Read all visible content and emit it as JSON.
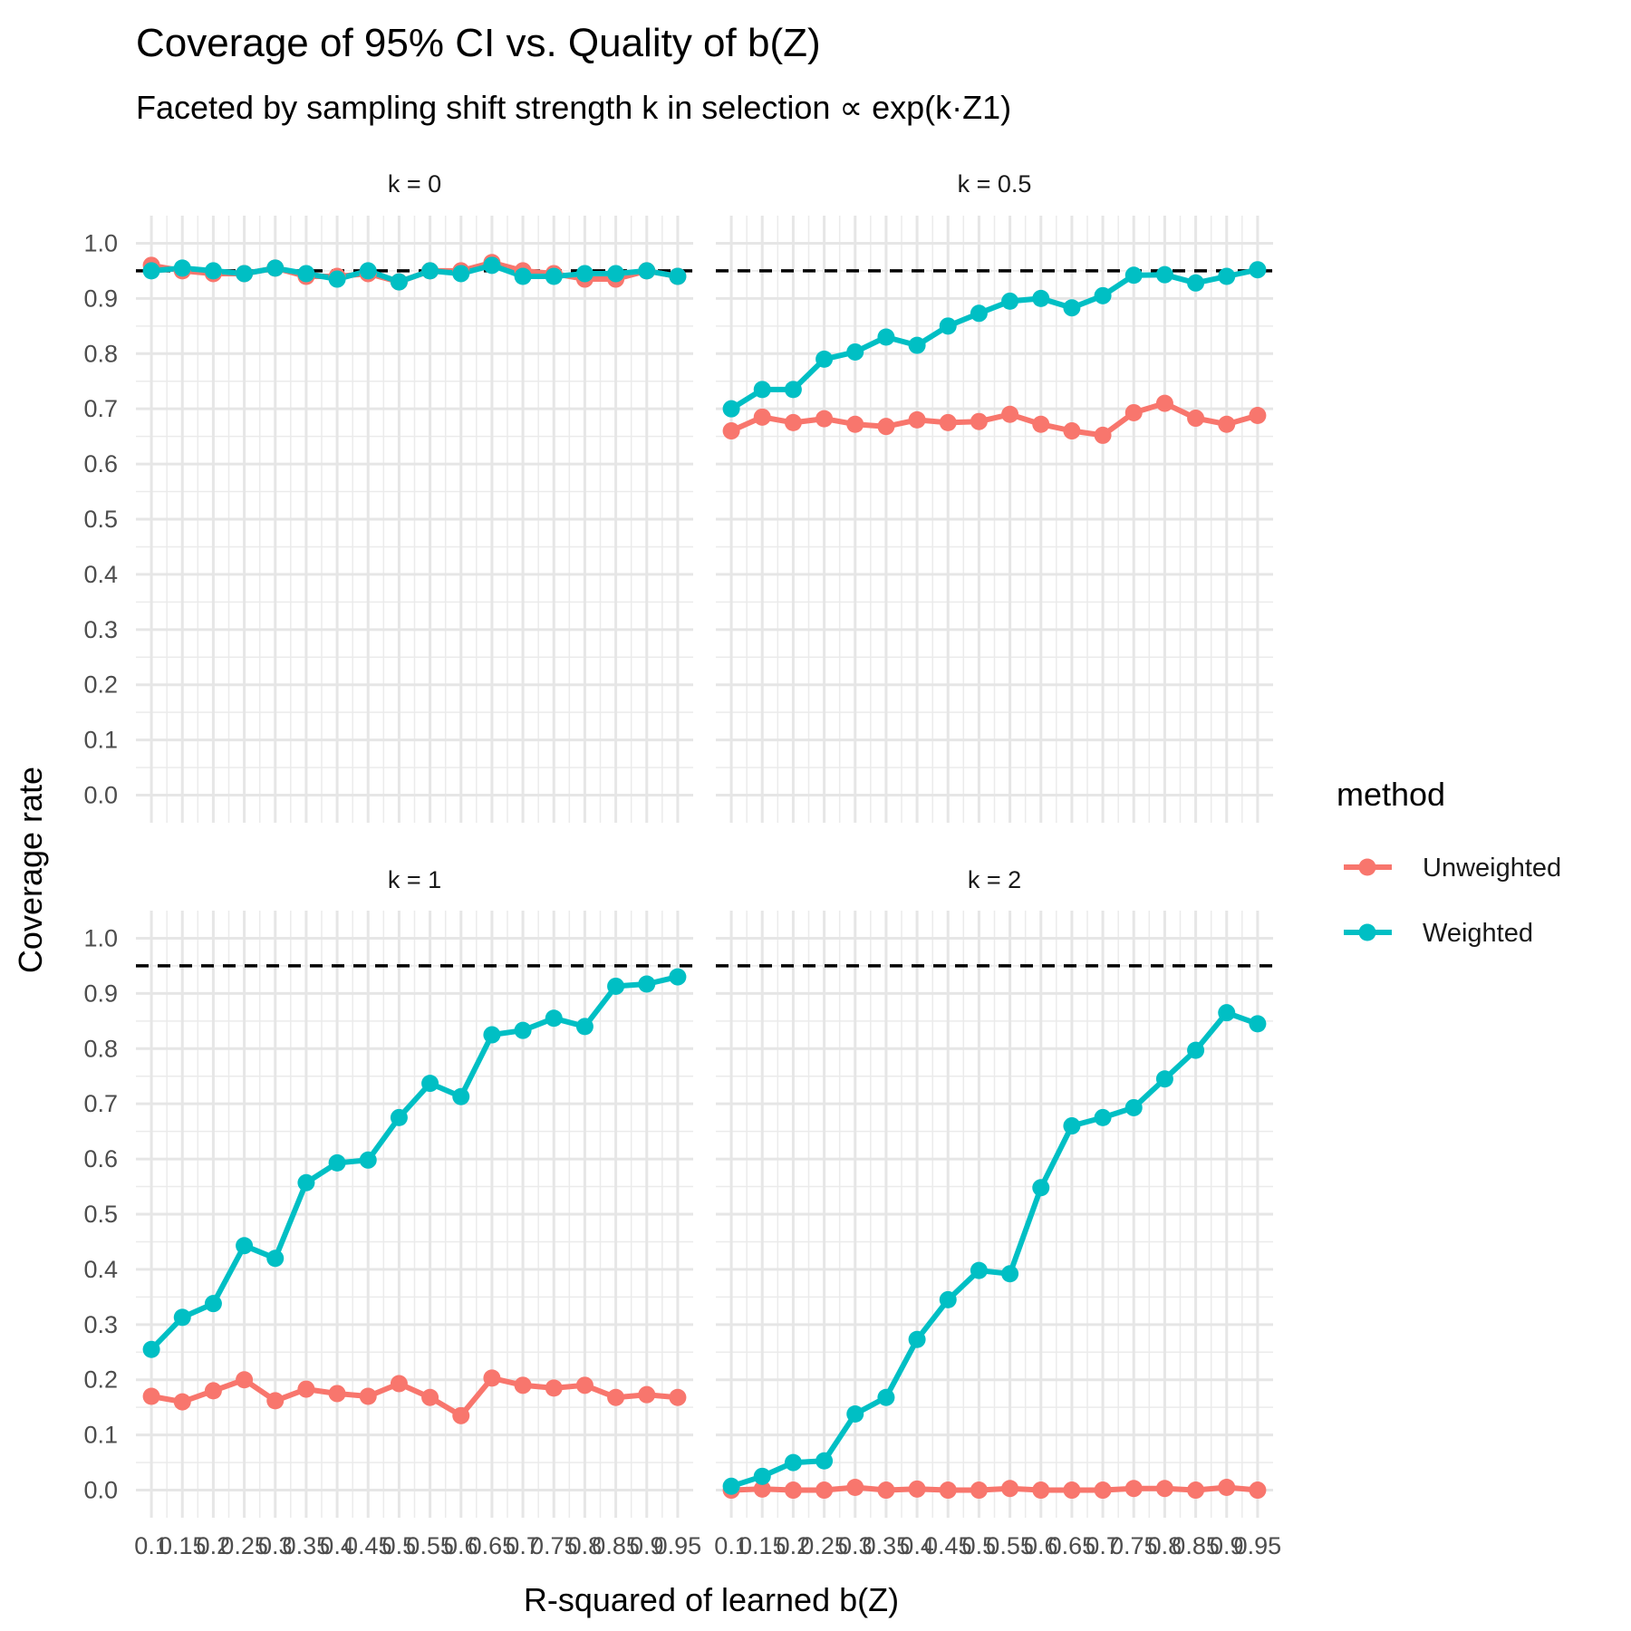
{
  "chart_data": {
    "type": "line",
    "title": "Coverage of 95% CI vs. Quality of b(Z)",
    "subtitle": "Faceted by sampling shift strength k in selection ∝ exp(k·Z1)",
    "xlabel": "R-squared of learned b(Z)",
    "ylabel": "Coverage rate",
    "ylim": [
      -0.05,
      1.05
    ],
    "yticks": [
      "0.0",
      "0.1",
      "0.2",
      "0.3",
      "0.4",
      "0.5",
      "0.6",
      "0.7",
      "0.8",
      "0.9",
      "1.0"
    ],
    "x": [
      0.1,
      0.15,
      0.2,
      0.25,
      0.3,
      0.35,
      0.4,
      0.45,
      0.5,
      0.55,
      0.6,
      0.65,
      0.7,
      0.75,
      0.8,
      0.85,
      0.9,
      0.95,
      0.1,
      0.15,
      0.2,
      0.25,
      0.3,
      0.35,
      0.4,
      0.45,
      0.5,
      0.55,
      0.6,
      0.65,
      0.7,
      0.75,
      0.8,
      0.85,
      0.9,
      0.95
    ],
    "xtick_labels": [
      "0.1",
      "0.15",
      "0.2",
      "0.25",
      "0.3",
      "0.35",
      "0.4",
      "0.45",
      "0.5",
      "0.55",
      "0.6",
      "0.65",
      "0.7",
      "0.75",
      "0.8",
      "0.85",
      "0.9",
      "0.95",
      "0.1",
      "0.15",
      "0.2",
      "0.25",
      "0.3",
      "0.35",
      "0.4",
      "0.45",
      "0.5",
      "0.55",
      "0.6",
      "0.65",
      "0.7",
      "0.75",
      "0.8",
      "0.85",
      "0.9",
      "0.95"
    ],
    "reference_line": 0.95,
    "grid": true,
    "legend": {
      "title": "method",
      "position": "right",
      "entries": [
        {
          "name": "Unweighted",
          "color": "#F8766D"
        },
        {
          "name": "Weighted",
          "color": "#00BFC4"
        }
      ]
    },
    "facets": [
      {
        "label": "k = 0",
        "series": [
          {
            "name": "Unweighted",
            "color": "#F8766D",
            "values": [
              0.96,
              0.95,
              0.945,
              0.945,
              0.955,
              0.94,
              0.94,
              0.945,
              0.93,
              0.95,
              0.95,
              0.965,
              0.95,
              0.945,
              0.935,
              0.935,
              0.95,
              0.94,
              0.96,
              0.95,
              0.945,
              0.945,
              0.955,
              0.94,
              0.94,
              0.945,
              0.93,
              0.95,
              0.95,
              0.965,
              0.95,
              0.945,
              0.935,
              0.935,
              0.95,
              0.94
            ]
          },
          {
            "name": "Weighted",
            "color": "#00BFC4",
            "values": [
              0.95,
              0.955,
              0.95,
              0.945,
              0.955,
              0.945,
              0.935,
              0.95,
              0.93,
              0.95,
              0.945,
              0.96,
              0.94,
              0.94,
              0.945,
              0.945,
              0.95,
              0.94,
              0.95,
              0.955,
              0.95,
              0.945,
              0.955,
              0.945,
              0.935,
              0.95,
              0.93,
              0.95,
              0.945,
              0.96,
              0.94,
              0.94,
              0.945,
              0.945,
              0.95,
              0.94
            ]
          }
        ]
      },
      {
        "label": "k = 0.5",
        "series": [
          {
            "name": "Unweighted",
            "color": "#F8766D",
            "values": [
              0.66,
              0.685,
              0.675,
              0.682,
              0.672,
              0.668,
              0.68,
              0.675,
              0.677,
              0.69,
              0.672,
              0.66,
              0.652,
              0.693,
              0.71,
              0.683,
              0.672,
              0.688,
              0.66,
              0.685,
              0.675,
              0.682,
              0.672,
              0.668,
              0.68,
              0.675,
              0.677,
              0.69,
              0.672,
              0.66,
              0.652,
              0.693,
              0.71,
              0.683,
              0.672,
              0.688
            ]
          },
          {
            "name": "Weighted",
            "color": "#00BFC4",
            "values": [
              0.7,
              0.735,
              0.735,
              0.79,
              0.803,
              0.83,
              0.815,
              0.85,
              0.873,
              0.895,
              0.9,
              0.883,
              0.905,
              0.942,
              0.943,
              0.928,
              0.94,
              0.952,
              0.7,
              0.735,
              0.735,
              0.79,
              0.803,
              0.83,
              0.815,
              0.85,
              0.873,
              0.895,
              0.9,
              0.883,
              0.905,
              0.942,
              0.943,
              0.928,
              0.94,
              0.952
            ]
          }
        ]
      },
      {
        "label": "k = 1",
        "series": [
          {
            "name": "Unweighted",
            "color": "#F8766D",
            "values": [
              0.17,
              0.16,
              0.18,
              0.2,
              0.162,
              0.183,
              0.175,
              0.17,
              0.193,
              0.168,
              0.135,
              0.203,
              0.19,
              0.185,
              0.19,
              0.168,
              0.173,
              0.168,
              0.17,
              0.16,
              0.18,
              0.2,
              0.162,
              0.183,
              0.175,
              0.17,
              0.193,
              0.168,
              0.135,
              0.203,
              0.19,
              0.185,
              0.19,
              0.168,
              0.173,
              0.168
            ]
          },
          {
            "name": "Weighted",
            "color": "#00BFC4",
            "values": [
              0.255,
              0.313,
              0.338,
              0.443,
              0.42,
              0.557,
              0.593,
              0.598,
              0.675,
              0.737,
              0.713,
              0.825,
              0.833,
              0.855,
              0.84,
              0.913,
              0.917,
              0.93,
              0.255,
              0.313,
              0.338,
              0.443,
              0.42,
              0.557,
              0.593,
              0.598,
              0.675,
              0.737,
              0.713,
              0.825,
              0.833,
              0.855,
              0.84,
              0.913,
              0.917,
              0.93
            ]
          }
        ]
      },
      {
        "label": "k = 2",
        "series": [
          {
            "name": "Unweighted",
            "color": "#F8766D",
            "values": [
              0.0,
              0.002,
              0.0,
              0.0,
              0.005,
              0.0,
              0.002,
              0.0,
              0.0,
              0.003,
              0.0,
              0.0,
              0.0,
              0.003,
              0.003,
              0.0,
              0.005,
              0.0,
              0.0,
              0.002,
              0.0,
              0.0,
              0.005,
              0.0,
              0.002,
              0.0,
              0.0,
              0.003,
              0.0,
              0.0,
              0.0,
              0.003,
              0.003,
              0.0,
              0.005,
              0.0
            ]
          },
          {
            "name": "Weighted",
            "color": "#00BFC4",
            "values": [
              0.007,
              0.025,
              0.05,
              0.053,
              0.138,
              0.168,
              0.273,
              0.345,
              0.398,
              0.392,
              0.548,
              0.66,
              0.675,
              0.693,
              0.745,
              0.797,
              0.865,
              0.845,
              0.007,
              0.025,
              0.05,
              0.053,
              0.138,
              0.168,
              0.273,
              0.345,
              0.398,
              0.392,
              0.548,
              0.66,
              0.675,
              0.693,
              0.745,
              0.797,
              0.865,
              0.845
            ]
          }
        ]
      }
    ]
  }
}
